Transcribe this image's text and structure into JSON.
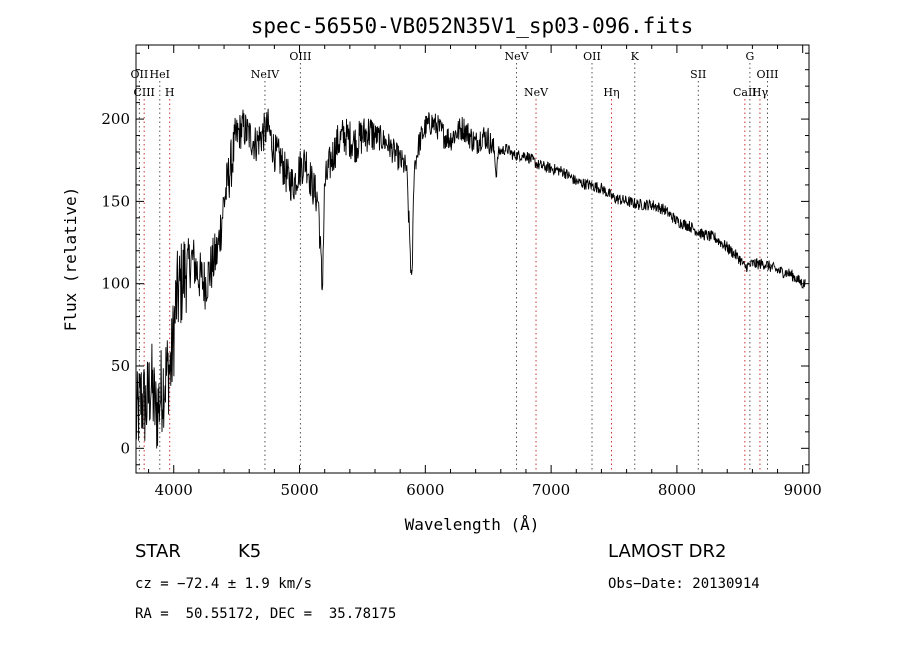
{
  "chart_data": {
    "type": "line",
    "title": "spec-56550-VB052N35V1_sp03-096.fits",
    "xlabel": "Wavelength (Å)",
    "ylabel": "Flux (relative)",
    "xlim": [
      3700,
      9050
    ],
    "ylim": [
      -15,
      245
    ],
    "xticks": [
      4000,
      5000,
      6000,
      7000,
      8000,
      9000
    ],
    "yticks": [
      0,
      50,
      100,
      150,
      200
    ],
    "series": [
      {
        "x": [
          3700,
          3740,
          3780,
          3820,
          3860,
          3900,
          3940,
          3980,
          4020,
          4060,
          4100,
          4150,
          4200,
          4250,
          4300,
          4350,
          4400,
          4450,
          4500,
          4550,
          4600,
          4650,
          4700,
          4750,
          4800,
          4850,
          4900,
          4950,
          5000,
          5050,
          5100,
          5150,
          5180,
          5200,
          5250,
          5300,
          5350,
          5400,
          5450,
          5500,
          5550,
          5600,
          5650,
          5700,
          5750,
          5800,
          5850,
          5880,
          5893,
          5910,
          5950,
          6000,
          6050,
          6100,
          6150,
          6200,
          6250,
          6300,
          6350,
          6400,
          6450,
          6500,
          6550,
          6563,
          6580,
          6650,
          6700,
          6800,
          6900,
          7000,
          7100,
          7200,
          7300,
          7400,
          7500,
          7600,
          7700,
          7800,
          7900,
          8000,
          8100,
          8200,
          8300,
          8400,
          8500,
          8540,
          8600,
          8700,
          8800,
          8900,
          9000
        ],
        "y": [
          15,
          30,
          25,
          40,
          20,
          35,
          45,
          50,
          90,
          100,
          110,
          115,
          105,
          100,
          110,
          120,
          150,
          170,
          190,
          195,
          190,
          185,
          190,
          195,
          180,
          175,
          165,
          160,
          170,
          175,
          160,
          150,
          95,
          160,
          175,
          185,
          190,
          188,
          185,
          190,
          192,
          190,
          188,
          185,
          180,
          175,
          170,
          120,
          95,
          170,
          185,
          195,
          198,
          195,
          190,
          188,
          192,
          195,
          190,
          185,
          190,
          188,
          180,
          165,
          180,
          182,
          178,
          178,
          172,
          170,
          168,
          162,
          160,
          158,
          152,
          150,
          148,
          148,
          145,
          138,
          135,
          130,
          128,
          122,
          115,
          110,
          112,
          112,
          108,
          106,
          100
        ]
      }
    ],
    "line_markers": {
      "upper": [
        {
          "label": "OII",
          "x": 3727,
          "row": 1
        },
        {
          "label": "HeI",
          "x": 3889,
          "row": 1
        },
        {
          "label": "OIII",
          "x": 5007,
          "row": 0
        },
        {
          "label": "NeIV",
          "x": 4725,
          "row": 1
        },
        {
          "label": "NeV",
          "x": 6725,
          "row": 0
        },
        {
          "label": "OII",
          "x": 7325,
          "row": 0
        },
        {
          "label": "K",
          "x": 7665,
          "row": 0
        },
        {
          "label": "SII",
          "x": 8170,
          "row": 1
        },
        {
          "label": "G",
          "x": 8580,
          "row": 0
        },
        {
          "label": "OIII",
          "x": 8720,
          "row": 1
        }
      ],
      "lower": [
        {
          "label": "CIII",
          "x": 3765,
          "row": 2
        },
        {
          "label": "H",
          "x": 3968,
          "row": 2
        },
        {
          "label": "NeV",
          "x": 6880,
          "row": 2
        },
        {
          "label": "Hη",
          "x": 7480,
          "row": 2
        },
        {
          "label": "CaII",
          "x": 8540,
          "row": 2
        },
        {
          "label": "Hγ",
          "x": 8660,
          "row": 2
        }
      ],
      "upper_color": "#000000",
      "lower_color": "#cc3333",
      "dash_style": "dotted"
    }
  },
  "info": {
    "object_type": "STAR",
    "subclass": "K5",
    "cz_line": "cz = −72.4 ± 1.9 km/s",
    "coords_line": "RA =  50.55172, DEC =  35.78175",
    "survey": "LAMOST DR2",
    "obs_date_line": "Obs−Date: 20130914"
  }
}
